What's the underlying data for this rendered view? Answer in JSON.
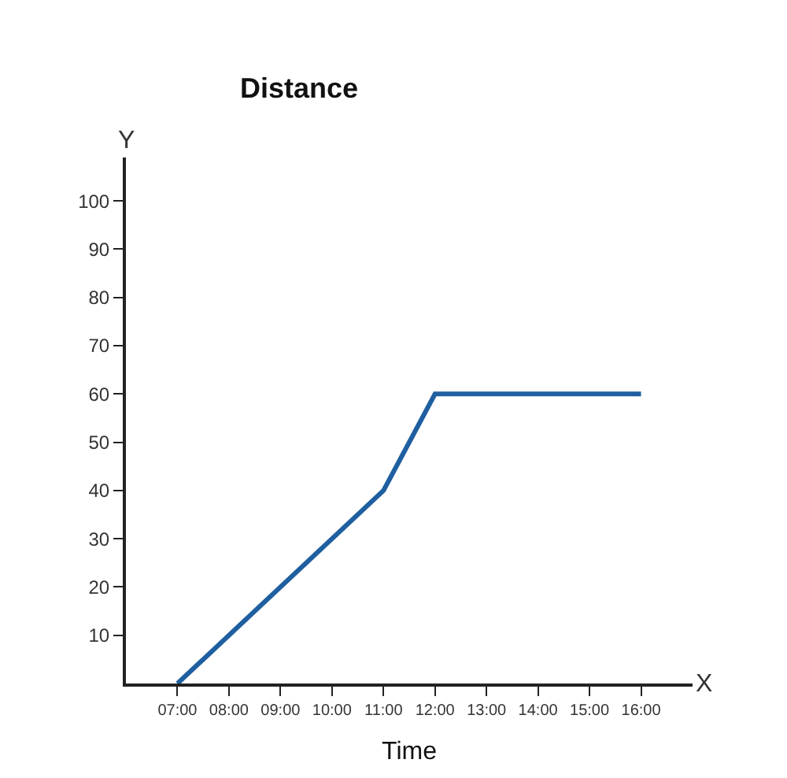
{
  "chart_data": {
    "type": "line",
    "title": "Distance",
    "xlabel": "Time",
    "annotations": [
      "X",
      "Y"
    ],
    "x": [
      7,
      11,
      12,
      16
    ],
    "series": [
      {
        "color": "#1f5fa0",
        "values": [
          0,
          40,
          60,
          60
        ]
      }
    ],
    "xlim": [
      6,
      17
    ],
    "ylim": [
      0,
      109
    ],
    "xticks": [
      {
        "value": 7,
        "label": "07:00"
      },
      {
        "value": 8,
        "label": "08:00"
      },
      {
        "value": 9,
        "label": "09:00"
      },
      {
        "value": 10,
        "label": "10:00"
      },
      {
        "value": 11,
        "label": "11:00"
      },
      {
        "value": 12,
        "label": "12:00"
      },
      {
        "value": 13,
        "label": "13:00"
      },
      {
        "value": 14,
        "label": "14:00"
      },
      {
        "value": 15,
        "label": "15:00"
      },
      {
        "value": 16,
        "label": "16:00"
      }
    ],
    "yticks": [
      10,
      20,
      30,
      40,
      50,
      60,
      70,
      80,
      90,
      100
    ],
    "legend": false,
    "marker": "none",
    "line_style": "solid"
  }
}
